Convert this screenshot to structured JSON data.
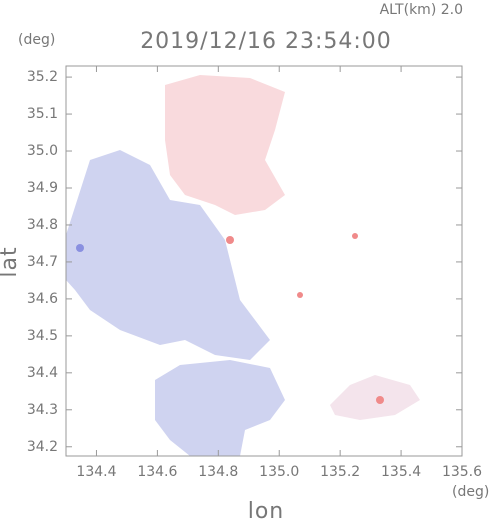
{
  "chart_data": {
    "type": "map",
    "title": "2019/12/16 23:54:00",
    "subtitle": "ALT(km) 2.0",
    "y_unit": "(deg)",
    "x_unit": "(deg)",
    "xlabel": "lon",
    "ylabel": "lat",
    "xlim": [
      134.3,
      135.6
    ],
    "ylim": [
      34.175,
      35.23
    ],
    "xticks": [
      134.4,
      134.6,
      134.8,
      {
        "value": 135,
        "label": "135.0"
      },
      135.2,
      135.4,
      135.6
    ],
    "yticks": [
      34.2,
      34.3,
      34.4,
      34.5,
      34.6,
      34.7,
      34.8,
      34.9,
      {
        "value": 35,
        "label": "35.0"
      },
      35.1,
      35.2
    ]
  }
}
